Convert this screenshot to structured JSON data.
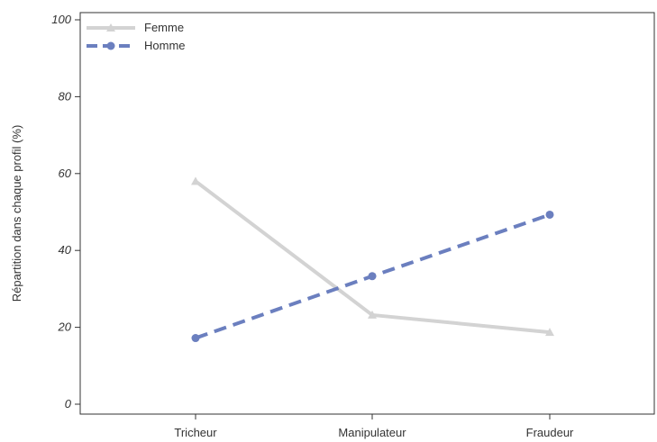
{
  "chart_data": {
    "type": "line",
    "categories": [
      "Tricheur",
      "Manipulateur",
      "Fraudeur"
    ],
    "series": [
      {
        "name": "Femme",
        "values": [
          58,
          23.2,
          18.7
        ],
        "color": "#d3d3d3",
        "marker": "triangle",
        "dash": "solid"
      },
      {
        "name": "Homme",
        "values": [
          17.2,
          33.3,
          49.3
        ],
        "color": "#6b7fbf",
        "marker": "circle",
        "dash": "dashed"
      }
    ],
    "title": "",
    "xlabel": "",
    "ylabel": "Répartition dans chaque profil (%)",
    "ylim": [
      0,
      100
    ],
    "yticks": [
      "0",
      "20",
      "40",
      "60",
      "80",
      "100"
    ],
    "legend_position": "top-left",
    "grid": false
  }
}
